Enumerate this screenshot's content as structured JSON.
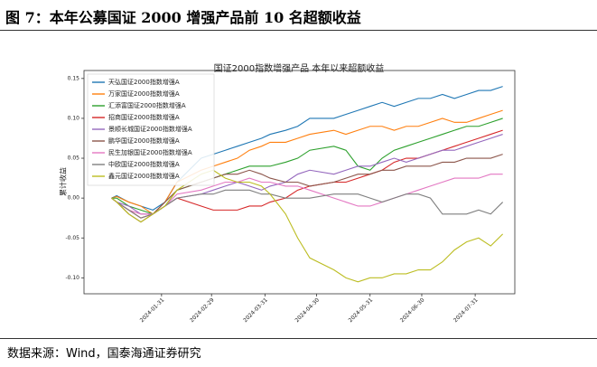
{
  "header": {
    "title": "图 7：本年公募国证 2000 增强产品前 10 名超额收益"
  },
  "source": "数据来源：Wind，国泰海通证券研究",
  "chart_data": {
    "type": "line",
    "title": "国证2000指数增强产品 本年以来超额收益",
    "y_label": "累计收益",
    "x": [
      "2024-01-02",
      "2024-01-05",
      "2024-01-12",
      "2024-01-19",
      "2024-01-26",
      "2024-02-02",
      "2024-02-09",
      "2024-02-23",
      "2024-03-01",
      "2024-03-08",
      "2024-03-15",
      "2024-03-22",
      "2024-03-29",
      "2024-04-03",
      "2024-04-12",
      "2024-04-19",
      "2024-04-26",
      "2024-05-10",
      "2024-05-17",
      "2024-05-24",
      "2024-05-31",
      "2024-06-07",
      "2024-06-14",
      "2024-06-21",
      "2024-06-28",
      "2024-07-05",
      "2024-07-12",
      "2024-07-19",
      "2024-07-26",
      "2024-08-02",
      "2024-08-09",
      "2024-08-16"
    ],
    "xlim": [
      "2023-12-17",
      "2024-08-23"
    ],
    "xticks": [
      "2024-01-31",
      "2024-02-29",
      "2024-03-31",
      "2024-04-30",
      "2024-05-31",
      "2024-06-30",
      "2024-07-31"
    ],
    "ylim": [
      -0.12,
      0.16
    ],
    "yticks": [
      {
        "value": -0.1,
        "label": "-0.10"
      },
      -0.05,
      {
        "value": 0,
        "label": "0.00"
      },
      0.05,
      {
        "value": 0.1,
        "label": "0.10"
      },
      0.15
    ],
    "legend": "upper left",
    "series": [
      {
        "name": "天弘国证2000指数增强A",
        "color": "#1f77b4",
        "values": [
          0,
          0.003,
          -0.005,
          -0.01,
          -0.015,
          -0.005,
          0.02,
          0.05,
          0.055,
          0.06,
          0.065,
          0.07,
          0.075,
          0.08,
          0.085,
          0.09,
          0.1,
          0.1,
          0.105,
          0.11,
          0.115,
          0.12,
          0.115,
          0.12,
          0.125,
          0.125,
          0.13,
          0.125,
          0.13,
          0.135,
          0.135,
          0.14
        ]
      },
      {
        "name": "万家国证2000指数增强A",
        "color": "#ff7f0e",
        "values": [
          0,
          0.002,
          -0.005,
          -0.01,
          -0.02,
          -0.005,
          0.02,
          0.035,
          0.04,
          0.045,
          0.05,
          0.06,
          0.065,
          0.07,
          0.07,
          0.075,
          0.08,
          0.085,
          0.08,
          0.085,
          0.09,
          0.09,
          0.085,
          0.09,
          0.09,
          0.095,
          0.1,
          0.095,
          0.095,
          0.1,
          0.105,
          0.11
        ]
      },
      {
        "name": "汇添富国证2000指数增强A",
        "color": "#2ca02c",
        "values": [
          0,
          0,
          -0.01,
          -0.015,
          -0.02,
          -0.01,
          0.01,
          0.02,
          0.025,
          0.03,
          0.035,
          0.04,
          0.04,
          0.04,
          0.045,
          0.05,
          0.06,
          0.065,
          0.06,
          0.04,
          0.035,
          0.05,
          0.06,
          0.065,
          0.07,
          0.075,
          0.08,
          0.085,
          0.09,
          0.09,
          0.095,
          0.1
        ]
      },
      {
        "name": "招商国证2000指数增强A",
        "color": "#d62728",
        "values": [
          0,
          -0.005,
          -0.015,
          -0.025,
          -0.02,
          -0.01,
          0,
          -0.01,
          -0.015,
          -0.015,
          -0.015,
          -0.01,
          -0.01,
          -0.005,
          0,
          0.01,
          0.015,
          0.02,
          0.02,
          0.025,
          0.03,
          0.035,
          0.045,
          0.05,
          0.05,
          0.055,
          0.06,
          0.065,
          0.07,
          0.075,
          0.08,
          0.085
        ]
      },
      {
        "name": "景顺长城国证2000指数增强A",
        "color": "#9467bd",
        "values": [
          0,
          -0.005,
          -0.01,
          -0.02,
          -0.02,
          -0.01,
          0,
          0.005,
          0.01,
          0.015,
          0.02,
          0.015,
          0.01,
          0.015,
          0.02,
          0.03,
          0.035,
          0.03,
          0.035,
          0.04,
          0.04,
          0.045,
          0.05,
          0.045,
          0.05,
          0.055,
          0.06,
          0.06,
          0.065,
          0.07,
          0.075,
          0.08
        ]
      },
      {
        "name": "鹏华国证2000指数增强A",
        "color": "#8c564b",
        "values": [
          0,
          -0.005,
          -0.02,
          -0.03,
          -0.02,
          -0.005,
          0.01,
          0.02,
          0.025,
          0.03,
          0.03,
          0.035,
          0.03,
          0.025,
          0.02,
          0.02,
          0.015,
          0.02,
          0.025,
          0.03,
          0.03,
          0.035,
          0.035,
          0.04,
          0.04,
          0.04,
          0.045,
          0.045,
          0.05,
          0.05,
          0.05,
          0.055
        ]
      },
      {
        "name": "民生加银国证2000指数增强A",
        "color": "#e377c2",
        "values": [
          0,
          -0.005,
          -0.015,
          -0.02,
          -0.02,
          -0.01,
          0.005,
          0.01,
          0.015,
          0.02,
          0.02,
          0.025,
          0.02,
          0.02,
          0.015,
          0.015,
          0.01,
          0,
          -0.005,
          -0.01,
          -0.01,
          -0.005,
          0,
          0.005,
          0.01,
          0.015,
          0.02,
          0.025,
          0.025,
          0.025,
          0.03,
          0.03
        ]
      },
      {
        "name": "中欧国证2000指数增强A",
        "color": "#7f7f7f",
        "values": [
          0,
          -0.005,
          -0.015,
          -0.025,
          -0.02,
          -0.01,
          0,
          0.005,
          0.005,
          0.01,
          0.01,
          0.01,
          0.005,
          0.005,
          0,
          0,
          0,
          0.005,
          0.005,
          0.005,
          0,
          -0.005,
          0,
          0.005,
          0.005,
          0,
          -0.02,
          -0.02,
          -0.02,
          -0.015,
          -0.02,
          -0.005
        ]
      },
      {
        "name": "鑫元国证2000指数增强A",
        "color": "#bcbd22",
        "values": [
          0,
          -0.005,
          -0.02,
          -0.03,
          -0.02,
          -0.01,
          0.01,
          0.03,
          0.035,
          0.025,
          0.02,
          0.02,
          0.015,
          0.005,
          -0.02,
          -0.05,
          -0.075,
          -0.09,
          -0.1,
          -0.105,
          -0.1,
          -0.1,
          -0.095,
          -0.095,
          -0.09,
          -0.09,
          -0.08,
          -0.065,
          -0.055,
          -0.05,
          -0.06,
          -0.045
        ]
      }
    ]
  }
}
